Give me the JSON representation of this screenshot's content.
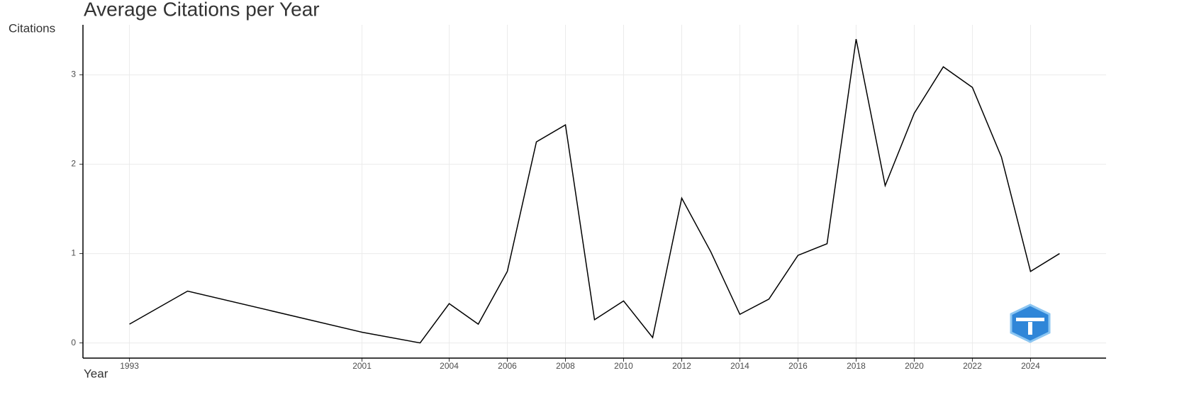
{
  "chart_data": {
    "type": "line",
    "title": "Average Citations per Year",
    "x_label": "Year",
    "y_label": "Citations",
    "x": [
      1993,
      1995,
      2001,
      2003,
      2004,
      2005,
      2006,
      2007,
      2008,
      2009,
      2010,
      2011,
      2012,
      2013,
      2014,
      2015,
      2016,
      2017,
      2018,
      2019,
      2020,
      2021,
      2022,
      2023,
      2024,
      2025
    ],
    "values": [
      0.21,
      0.58,
      0.12,
      0,
      0.44,
      0.21,
      0.8,
      2.25,
      2.44,
      0.26,
      0.47,
      0.06,
      1.62,
      1.02,
      0.32,
      0.49,
      0.98,
      1.11,
      3.4,
      1.76,
      2.57,
      3.09,
      2.86,
      2.08,
      0.8,
      1.0
    ],
    "color": "#000000",
    "xlim": [
      1991.4,
      2026.6
    ],
    "ylim": [
      -0.17,
      3.56
    ],
    "xticks": [
      1993,
      2001,
      2004,
      2006,
      2008,
      2010,
      2012,
      2014,
      2016,
      2018,
      2020,
      2022,
      2024
    ],
    "yticks": [
      0,
      1,
      2,
      3
    ],
    "grid": true
  }
}
